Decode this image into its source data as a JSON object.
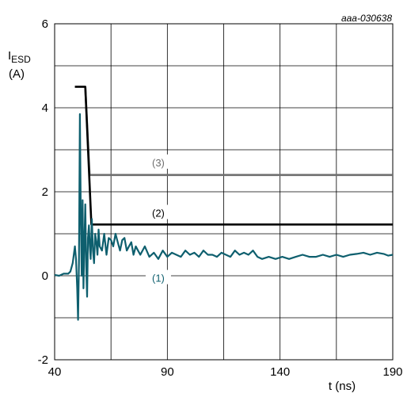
{
  "figure_id": "aaa-030638",
  "chart_data": {
    "type": "line",
    "ylabel_main": "I",
    "ylabel_sub": "ESD",
    "ylabel_unit": "(A)",
    "xlabel": "t (ns)",
    "xlim": [
      40,
      190
    ],
    "ylim": [
      -2,
      6
    ],
    "x_ticks": [
      40,
      90,
      140,
      190
    ],
    "x_tick_labels": [
      "40",
      "90",
      "140",
      "190"
    ],
    "y_ticks": [
      -2,
      0,
      2,
      4,
      6
    ],
    "y_tick_labels": [
      "-2",
      "0",
      "2",
      "4",
      "6"
    ],
    "x_grid": [
      40,
      65,
      90,
      115,
      140,
      165,
      190
    ],
    "y_grid": [
      -2,
      -1,
      0,
      1,
      2,
      3,
      4,
      5,
      6
    ],
    "grid": true,
    "series": [
      {
        "name": "(1)",
        "color": "#0e5f6e",
        "label_at": [
          86,
          -0.05
        ],
        "x": [
          40,
          42,
          44,
          46,
          47,
          48,
          49,
          49.5,
          50,
          50.4,
          50.8,
          51.2,
          51.6,
          52,
          52.4,
          52.8,
          53.2,
          53.6,
          54,
          54.4,
          54.8,
          55.2,
          55.6,
          56,
          56.5,
          57,
          57.5,
          58,
          58.5,
          59,
          59.5,
          60,
          61,
          62,
          63,
          64,
          65,
          66,
          67,
          68,
          69,
          70,
          71,
          72,
          73,
          74,
          75,
          76,
          77,
          78,
          80,
          82,
          84,
          86,
          88,
          90,
          92,
          94,
          96,
          98,
          100,
          102,
          104,
          106,
          108,
          110,
          112,
          114,
          116,
          118,
          120,
          122,
          124,
          126,
          128,
          130,
          132,
          135,
          138,
          141,
          144,
          147,
          150,
          153,
          156,
          159,
          162,
          165,
          168,
          171,
          174,
          177,
          180,
          183,
          186,
          188,
          190
        ],
        "y": [
          0.02,
          0.0,
          0.05,
          0.05,
          0.1,
          0.3,
          0.7,
          0.4,
          -0.3,
          -1.05,
          0.3,
          3.85,
          1.5,
          0.0,
          1.8,
          -0.3,
          0.8,
          1.7,
          0.2,
          -0.5,
          0.9,
          1.2,
          0.7,
          0.4,
          1.35,
          0.6,
          0.3,
          1.0,
          0.8,
          0.5,
          1.1,
          0.7,
          0.6,
          1.0,
          0.5,
          0.9,
          0.85,
          0.7,
          1.0,
          0.8,
          0.6,
          0.85,
          0.9,
          0.6,
          0.7,
          0.8,
          0.5,
          0.7,
          0.6,
          0.5,
          0.7,
          0.45,
          0.55,
          0.4,
          0.6,
          0.45,
          0.55,
          0.5,
          0.45,
          0.6,
          0.5,
          0.55,
          0.45,
          0.6,
          0.5,
          0.5,
          0.45,
          0.55,
          0.5,
          0.45,
          0.6,
          0.5,
          0.55,
          0.5,
          0.6,
          0.45,
          0.4,
          0.45,
          0.4,
          0.45,
          0.4,
          0.45,
          0.5,
          0.45,
          0.45,
          0.5,
          0.45,
          0.5,
          0.45,
          0.5,
          0.52,
          0.55,
          0.5,
          0.55,
          0.52,
          0.48,
          0.5
        ]
      },
      {
        "name": "(2)",
        "color": "#000000",
        "label_at": [
          86,
          1.5
        ],
        "x": [
          49,
          53.6,
          56.3,
          190
        ],
        "y": [
          4.5,
          4.5,
          1.22,
          1.22
        ]
      },
      {
        "name": "(3)",
        "color": "#6e6e6e",
        "label_at": [
          86,
          2.7
        ],
        "x": [
          49,
          53.6,
          55.5,
          190
        ],
        "y": [
          4.5,
          4.5,
          2.4,
          2.4
        ]
      }
    ]
  }
}
